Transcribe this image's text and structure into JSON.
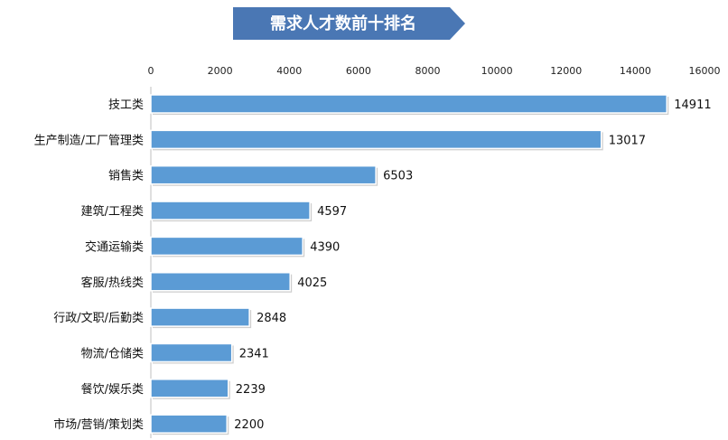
{
  "chart_data": {
    "type": "bar",
    "orientation": "horizontal",
    "title": "需求人才数前十排名",
    "categories": [
      "技工类",
      "生产制造/工厂管理类",
      "销售类",
      "建筑/工程类",
      "交通运输类",
      "客服/热线类",
      "行政/文职/后勤类",
      "物流/仓储类",
      "餐饮/娱乐类",
      "市场/营销/策划类"
    ],
    "values": [
      14911,
      13017,
      6503,
      4597,
      4390,
      4025,
      2848,
      2341,
      2239,
      2200
    ],
    "xlim": [
      0,
      16000
    ],
    "xticks": [
      0,
      2000,
      4000,
      6000,
      8000,
      10000,
      12000,
      14000,
      16000
    ],
    "axis_position": "top",
    "grid": false,
    "legend": "none",
    "colors": {
      "bar_fill": "#5b9bd5",
      "bar_stroke": "#ffffff",
      "title_bg": "#4a77b4",
      "title_text": "#ffffff"
    }
  }
}
